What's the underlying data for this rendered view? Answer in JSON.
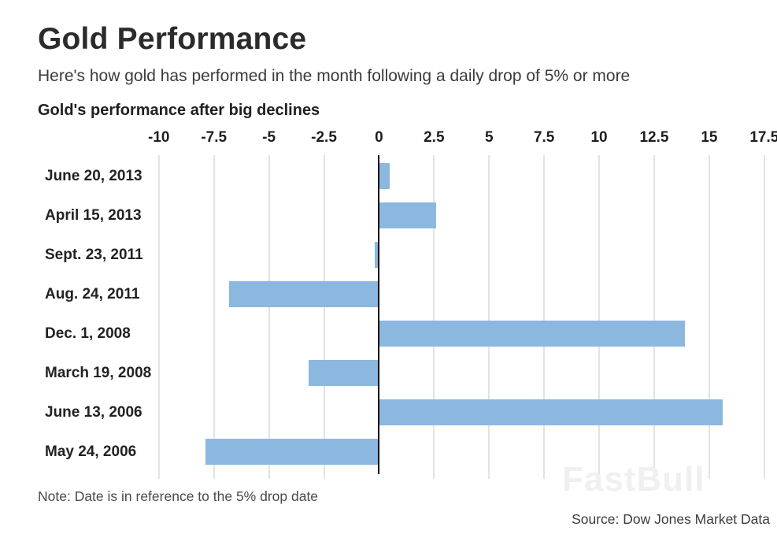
{
  "header": {
    "title": "Gold Performance",
    "subtitle": "Here's how gold has performed in the month following a daily drop of 5% or more",
    "chart_heading": "Gold's performance after big declines"
  },
  "chart_data": {
    "type": "bar",
    "orientation": "horizontal",
    "title": "Gold's performance after big declines",
    "categories": [
      "June 20, 2013",
      "April 15, 2013",
      "Sept. 23, 2011",
      "Aug. 24, 2011",
      "Dec. 1, 2008",
      "March 19, 2008",
      "June 13, 2006",
      "May 24, 2006"
    ],
    "values": [
      0.5,
      2.6,
      -0.2,
      -6.8,
      13.9,
      -3.2,
      15.6,
      -7.9
    ],
    "x_ticks": [
      -10,
      -7.5,
      -5,
      -2.5,
      0,
      2.5,
      5,
      7.5,
      10,
      12.5,
      15,
      17.5
    ],
    "x_tick_labels": [
      "-10",
      "-7.5",
      "-5",
      "-2.5",
      "0",
      "2.5",
      "5",
      "7.5",
      "10",
      "12.5",
      "15",
      "17.5"
    ],
    "xlim": [
      -10.6,
      17.9
    ],
    "grid": true,
    "legend": false,
    "bar_color": "#8cb8e0",
    "gridline_color": "#e3e3e3",
    "zero_line_color": "#000000",
    "unit": "percent"
  },
  "footer": {
    "note": "Note: Date is in reference to the 5% drop date",
    "source": "Source: Dow Jones Market Data",
    "watermark": "FastBull"
  }
}
